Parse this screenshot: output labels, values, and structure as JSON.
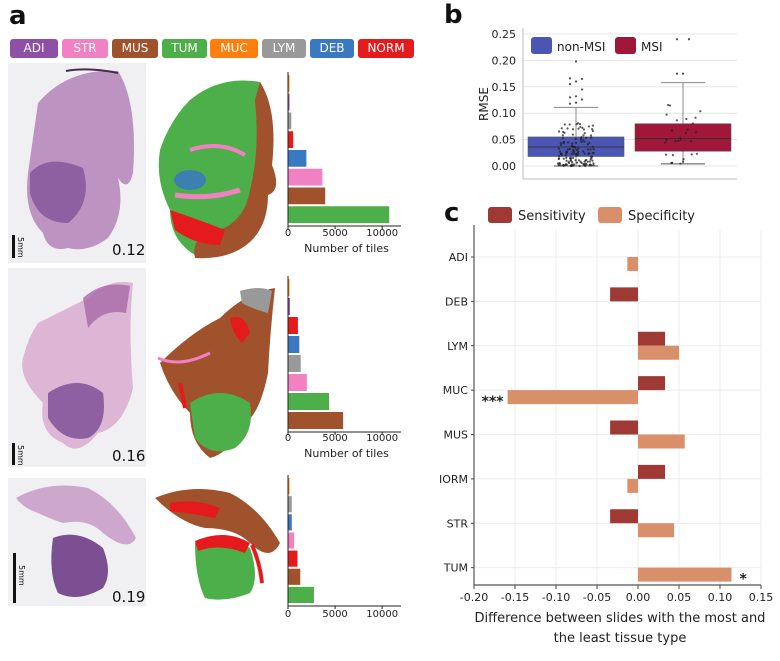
{
  "panels": {
    "a": {
      "letter": "a"
    },
    "b": {
      "letter": "b"
    },
    "c": {
      "letter": "c"
    }
  },
  "tissue_legend": [
    {
      "label": "ADI",
      "color": "#8e4fa6"
    },
    {
      "label": "STR",
      "color": "#f281c3"
    },
    {
      "label": "MUS",
      "color": "#a0522d"
    },
    {
      "label": "TUM",
      "color": "#4daf4a"
    },
    {
      "label": "MUC",
      "color": "#ff7f0e"
    },
    {
      "label": "LYM",
      "color": "#999999"
    },
    {
      "label": "DEB",
      "color": "#3a78c2"
    },
    {
      "label": "NORM",
      "color": "#e41a1c"
    }
  ],
  "slides": [
    {
      "value_label": "0.12",
      "scale_label": "5mm"
    },
    {
      "value_label": "0.16",
      "scale_label": "5mm"
    },
    {
      "value_label": "0.19",
      "scale_label": "5mm"
    }
  ],
  "chart_data": [
    {
      "id": "a-slide1",
      "type": "bar",
      "orientation": "horizontal",
      "categories": [
        "MUC",
        "ADI",
        "LYM",
        "NORM",
        "DEB",
        "STR",
        "MUS",
        "TUM"
      ],
      "values": [
        50,
        80,
        300,
        500,
        1900,
        3600,
        3900,
        10700
      ],
      "xlabel": "Number of tiles",
      "xticks": [
        "0",
        "5000",
        "10000"
      ],
      "xlim": [
        0,
        12000
      ]
    },
    {
      "id": "a-slide2",
      "type": "bar",
      "orientation": "horizontal",
      "categories": [
        "MUC",
        "ADI",
        "NORM",
        "DEB",
        "LYM",
        "STR",
        "TUM",
        "MUS"
      ],
      "values": [
        100,
        150,
        1000,
        1150,
        1300,
        1950,
        4300,
        5800
      ],
      "xlabel": "Number of tiles",
      "xticks": [
        "0",
        "5000",
        "10000"
      ],
      "xlim": [
        0,
        12000
      ]
    },
    {
      "id": "a-slide3",
      "type": "bar",
      "orientation": "horizontal",
      "categories": [
        "MUC",
        "LYM",
        "DEB",
        "STR",
        "NORM",
        "MUS",
        "TUM"
      ],
      "values": [
        50,
        350,
        350,
        600,
        950,
        1250,
        2700
      ],
      "xlabel": "Number of tiles",
      "xticks": [
        "0",
        "5000",
        "10000"
      ],
      "xlim": [
        0,
        12000
      ]
    },
    {
      "id": "b",
      "type": "box",
      "ylabel": "RMSE",
      "ylim": [
        -0.01,
        0.26
      ],
      "yticks": [
        "0.00",
        "0.05",
        "0.10",
        "0.15",
        "0.20",
        "0.25"
      ],
      "grid": true,
      "legend_position": "top-left",
      "series": [
        {
          "name": "non-MSI",
          "color": "#4b56b4",
          "whisker_low": 0.0,
          "q1": 0.018,
          "median": 0.036,
          "q3": 0.055,
          "whisker_high": 0.111,
          "outliers": [
            0.118,
            0.12,
            0.126,
            0.13,
            0.132,
            0.145,
            0.155,
            0.16,
            0.165,
            0.166,
            0.198
          ]
        },
        {
          "name": "MSI",
          "color": "#a0173a",
          "whisker_low": 0.004,
          "q1": 0.028,
          "median": 0.052,
          "q3": 0.08,
          "whisker_high": 0.158,
          "outliers": [
            0.175,
            0.175,
            0.24,
            0.24
          ]
        }
      ]
    },
    {
      "id": "c",
      "type": "bar",
      "orientation": "horizontal",
      "categories": [
        "ADI",
        "DEB",
        "LYM",
        "MUC",
        "MUS",
        "NORM",
        "STR",
        "TUM"
      ],
      "series": [
        {
          "name": "Sensitivity",
          "color": "#9e3a33",
          "values": [
            0,
            -0.034,
            0.033,
            0.033,
            -0.034,
            0.033,
            -0.034,
            0
          ]
        },
        {
          "name": "Specificity",
          "color": "#d9906a",
          "values": [
            -0.013,
            0,
            0.05,
            -0.159,
            0.057,
            -0.013,
            0.044,
            0.114
          ]
        }
      ],
      "annotations": [
        {
          "category": "MUC",
          "series": "Specificity",
          "text": "***"
        },
        {
          "category": "TUM",
          "series": "Specificity",
          "text": "*"
        }
      ],
      "xlabel": "Difference between slides with the most and the least tissue type",
      "xlabel_lines": [
        "Difference between slides with the most and",
        "the least tissue type"
      ],
      "xticks": [
        "-0.20",
        "-0.15",
        "-0.10",
        "-0.05",
        "0.00",
        "0.05",
        "0.10",
        "0.15"
      ],
      "xlim": [
        -0.2,
        0.15
      ],
      "grid": true,
      "legend_position": "top"
    }
  ]
}
